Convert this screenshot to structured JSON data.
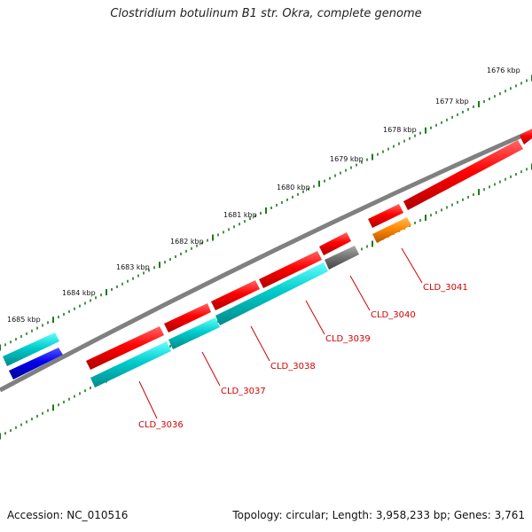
{
  "title": "Clostridium botulinum B1 str. Okra, complete genome",
  "footer": {
    "accession": "Accession: NC_010516",
    "topology": "Topology: circular; Length: 3,958,233 bp; Genes: 3,761"
  },
  "ruler_labels": [
    "1676 kbp",
    "1677 kbp",
    "1678 kbp",
    "1679 kbp",
    "1680 kbp",
    "1681 kbp",
    "1682 kbp",
    "1683 kbp",
    "1684 kbp",
    "1685 kbp"
  ],
  "colors": {
    "cds_red": "#ff0000",
    "cds_cyan": "#00cccc",
    "cds_blue": "#0000ee",
    "cds_gray": "#777777",
    "cds_orange": "#ff8800",
    "backbone": "#808080",
    "ruler": "#1a7a1a",
    "label": "#d40000"
  },
  "gene_labels": [
    "CLD_3036",
    "CLD_3037",
    "CLD_3038",
    "CLD_3039",
    "CLD_3040",
    "CLD_3041"
  ]
}
